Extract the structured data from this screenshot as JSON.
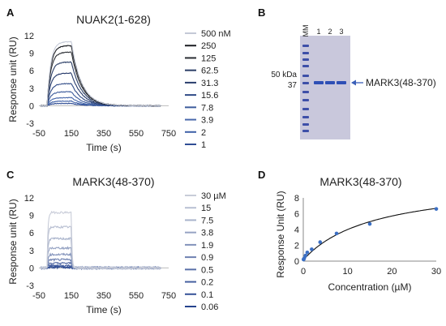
{
  "panel_letters": [
    "A",
    "B",
    "C",
    "D"
  ],
  "chart_data": [
    {
      "panel": "A",
      "type": "line",
      "title": "NUAK2(1-628)",
      "xlabel": "Time (s)",
      "ylabel": "Response unit (RU)",
      "xlim": [
        -50,
        750
      ],
      "ylim": [
        -3,
        12
      ],
      "xticks": [
        "-50",
        "150",
        "350",
        "550",
        "750"
      ],
      "yticks": [
        "12",
        "9",
        "6",
        "3",
        "0",
        "-3"
      ],
      "legend_position": "right",
      "injection_end_s": 150,
      "series": [
        {
          "name": "500 nM",
          "plateau": 11.0,
          "color": "#c4c9d6"
        },
        {
          "name": "250",
          "plateau": 10.3,
          "color": "#1b1d22"
        },
        {
          "name": "125",
          "plateau": 9.2,
          "color": "#2a2d33"
        },
        {
          "name": "62.5",
          "plateau": 7.5,
          "color": "#2b3e66"
        },
        {
          "name": "31.3",
          "plateau": 5.6,
          "color": "#283c6c"
        },
        {
          "name": "15.6",
          "plateau": 3.8,
          "color": "#2f4a86"
        },
        {
          "name": "7.8",
          "plateau": 2.4,
          "color": "#3d5c9c"
        },
        {
          "name": "3.9",
          "plateau": 1.4,
          "color": "#4868ab"
        },
        {
          "name": "2",
          "plateau": 0.8,
          "color": "#3d5fa6"
        },
        {
          "name": "1",
          "plateau": 0.4,
          "color": "#2f4d94"
        }
      ]
    },
    {
      "panel": "B",
      "type": "table",
      "lane_labels": [
        "MM",
        "1",
        "2",
        "3"
      ],
      "marker_labels": [
        "50 kDa",
        "37"
      ],
      "band_label": "MARK3(48-370)"
    },
    {
      "panel": "C",
      "type": "line",
      "title": "MARK3(48-370)",
      "xlabel": "Time (s)",
      "ylabel": "Response unit (RU)",
      "xlim": [
        -50,
        750
      ],
      "ylim": [
        -3,
        12
      ],
      "xticks": [
        "-50",
        "150",
        "350",
        "550",
        "750"
      ],
      "yticks": [
        "12",
        "9",
        "6",
        "3",
        "0",
        "-3"
      ],
      "legend_position": "right",
      "injection_end_s": 150,
      "series": [
        {
          "name": "30 µM",
          "plateau": 9.5,
          "color": "#c8ccd8"
        },
        {
          "name": "15",
          "plateau": 7.0,
          "color": "#b8bfd2"
        },
        {
          "name": "7.5",
          "plateau": 5.0,
          "color": "#a9b3cb"
        },
        {
          "name": "3.8",
          "plateau": 3.4,
          "color": "#96a3c3"
        },
        {
          "name": "1.9",
          "plateau": 2.3,
          "color": "#8292ba"
        },
        {
          "name": "0.9",
          "plateau": 1.4,
          "color": "#6e81b1"
        },
        {
          "name": "0.5",
          "plateau": 0.8,
          "color": "#5a70a8"
        },
        {
          "name": "0.2",
          "plateau": 0.4,
          "color": "#4660a0"
        },
        {
          "name": "0.1",
          "plateau": 0.2,
          "color": "#345197"
        },
        {
          "name": "0.06",
          "plateau": 0.1,
          "color": "#25438d"
        }
      ]
    },
    {
      "panel": "D",
      "type": "scatter",
      "title": "MARK3(48-370)",
      "xlabel": "Concentration (µM)",
      "ylabel": "Response Unit (RU)",
      "xlim": [
        0,
        30
      ],
      "ylim": [
        0,
        8
      ],
      "xticks": [
        "0",
        "10",
        "20",
        "30"
      ],
      "yticks": [
        "8",
        "6",
        "4",
        "2",
        "0"
      ],
      "fit": "saturation binding",
      "x": [
        0.06,
        0.1,
        0.2,
        0.5,
        0.9,
        1.9,
        3.8,
        7.5,
        15,
        30
      ],
      "y": [
        0.2,
        0.25,
        0.35,
        0.7,
        1.1,
        1.5,
        2.4,
        3.5,
        4.7,
        6.6
      ],
      "color": "#3b6fc4"
    }
  ]
}
